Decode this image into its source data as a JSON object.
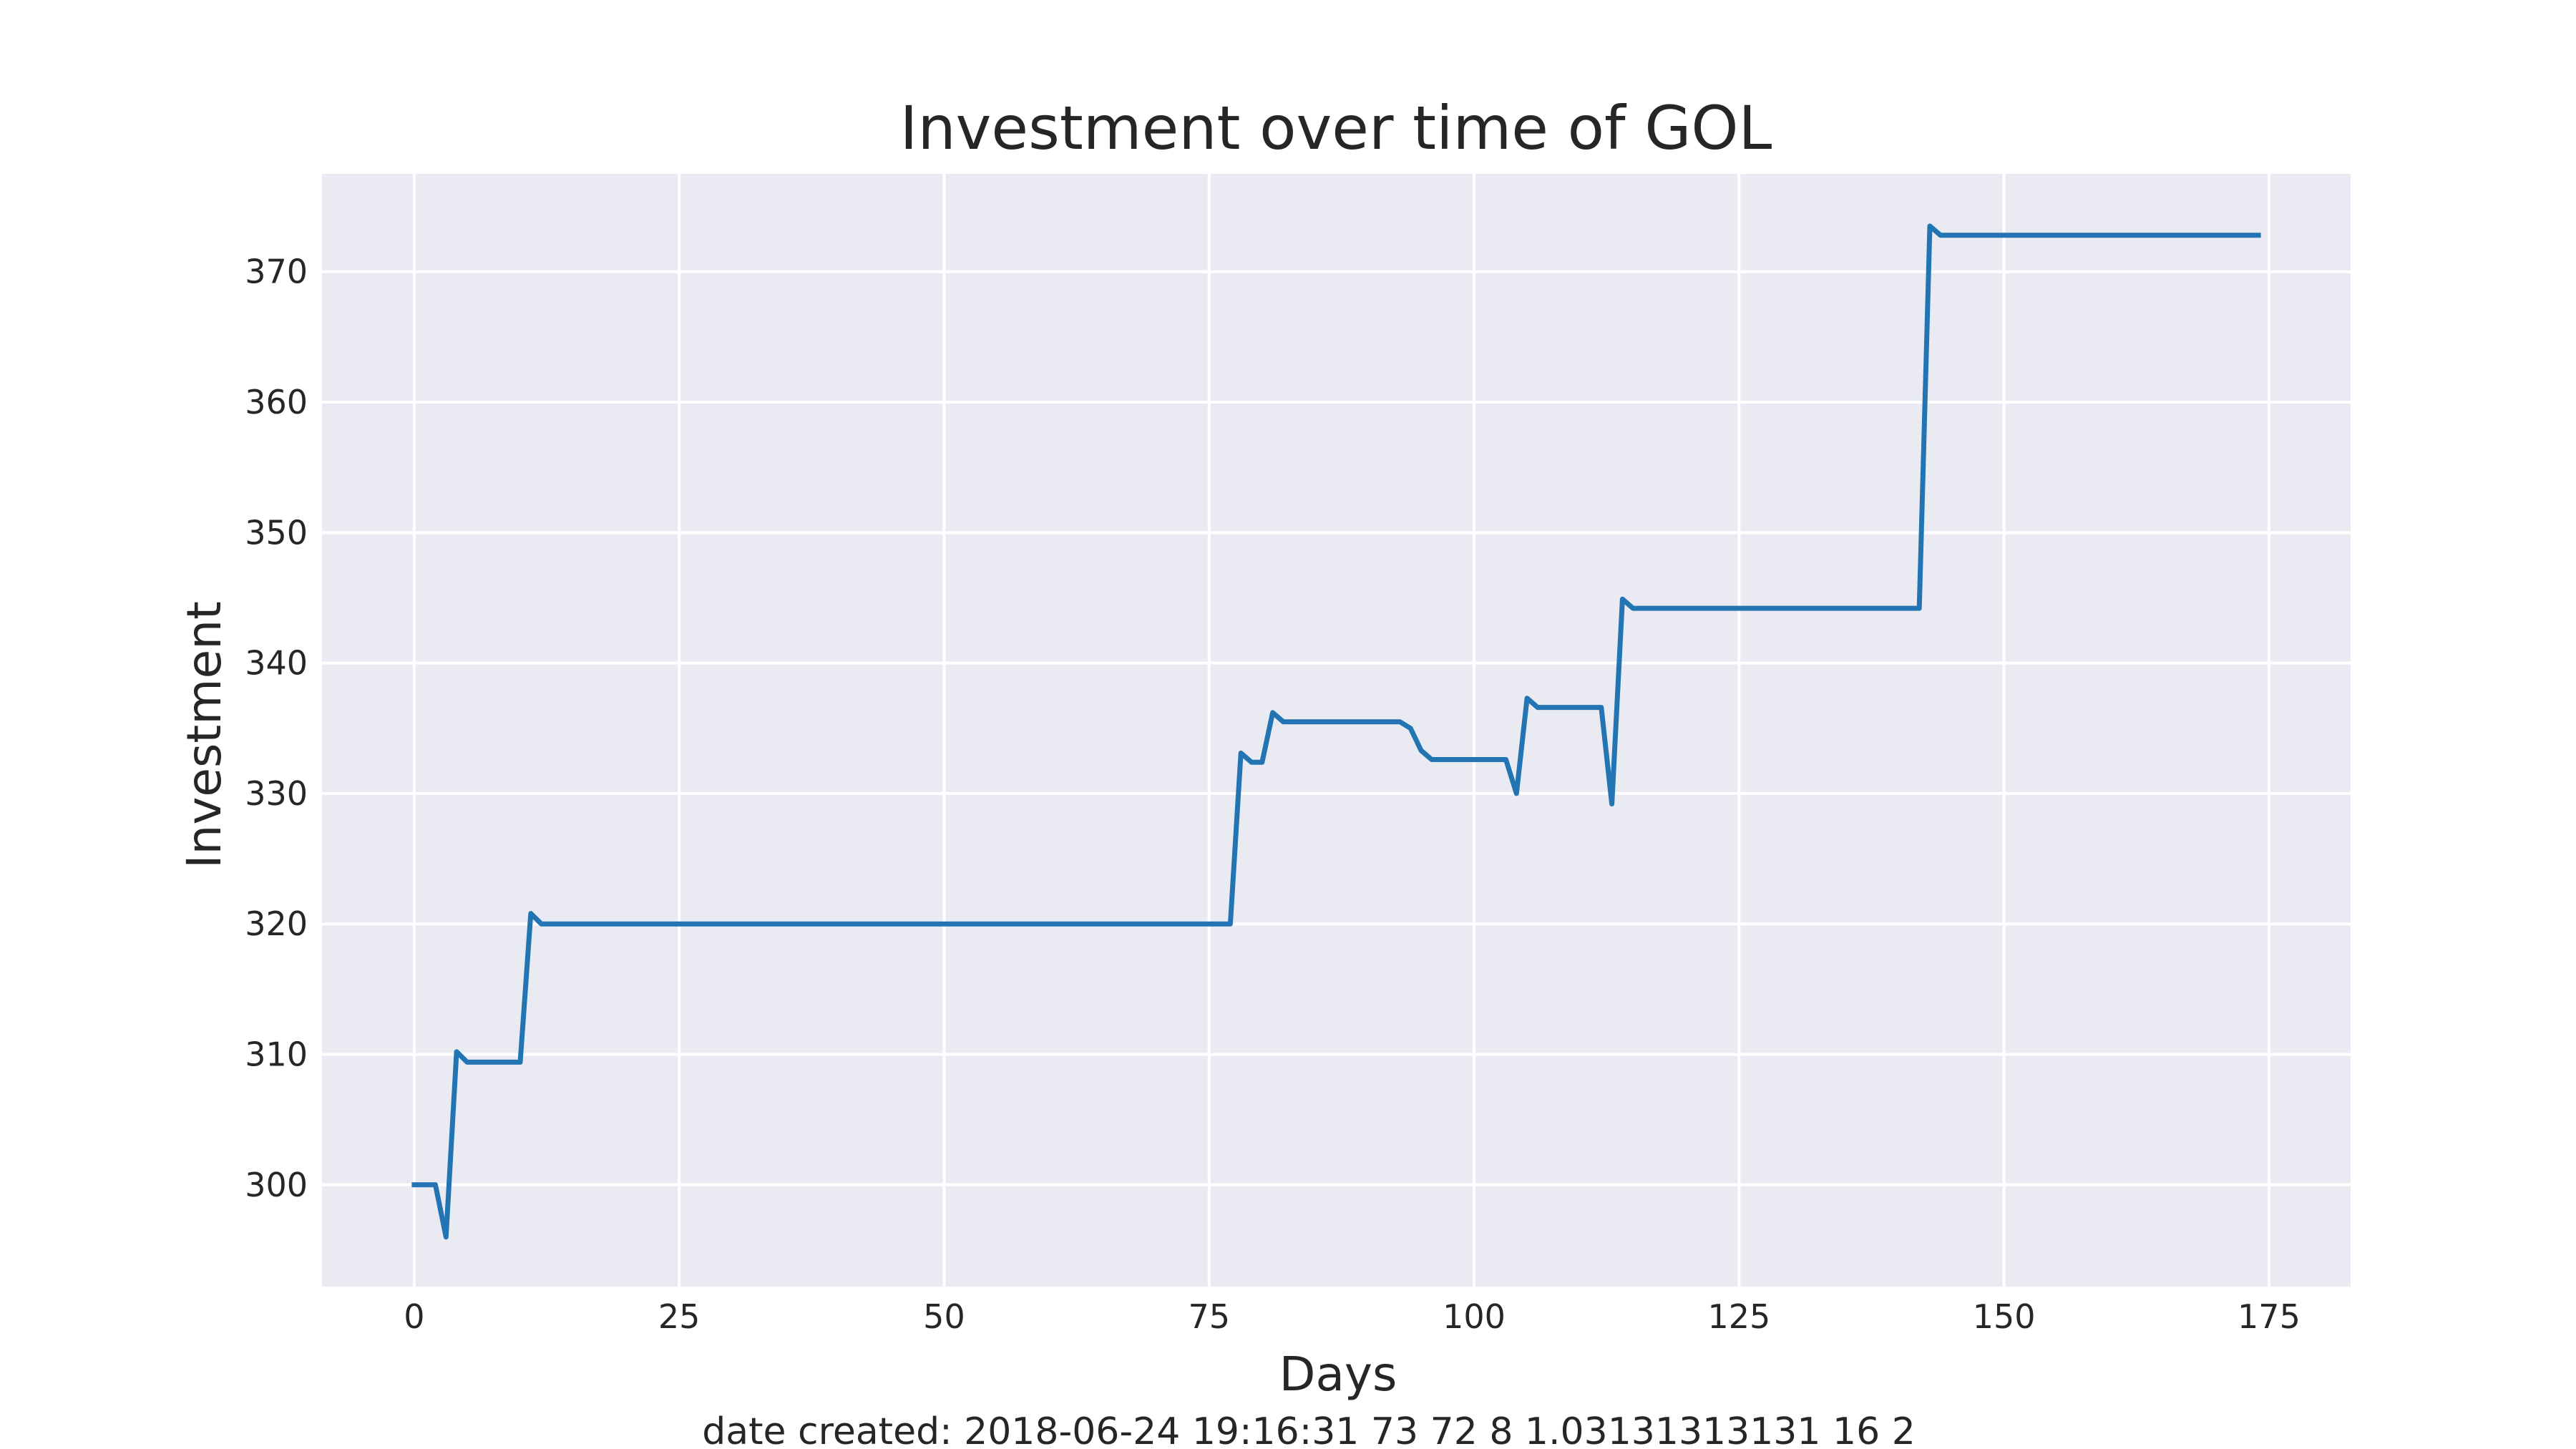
{
  "chart_data": {
    "type": "line",
    "title": "Investment over time of GOL",
    "xlabel": "Days",
    "ylabel": "Investment",
    "footer": "date created: 2018-06-24 19:16:31 73 72 8 1.03131313131 16 2",
    "xlim": [
      -8.7,
      182.7
    ],
    "ylim": [
      292.2,
      377.5
    ],
    "xticks": [
      0,
      25,
      50,
      75,
      100,
      125,
      150,
      175
    ],
    "yticks": [
      300,
      310,
      320,
      330,
      340,
      350,
      360,
      370
    ],
    "grid": true,
    "background": "#eaeaf2",
    "grid_color": "#ffffff",
    "series": [
      {
        "color": "#2274b2",
        "points": [
          [
            0,
            300
          ],
          [
            2,
            300
          ],
          [
            3,
            296
          ],
          [
            4,
            310.2
          ],
          [
            5,
            309.4
          ],
          [
            10,
            309.4
          ],
          [
            11,
            320.8
          ],
          [
            12,
            320
          ],
          [
            77,
            320
          ],
          [
            78,
            333.1
          ],
          [
            79,
            332.4
          ],
          [
            80,
            332.4
          ],
          [
            81,
            336.2
          ],
          [
            82,
            335.5
          ],
          [
            93,
            335.5
          ],
          [
            94,
            335
          ],
          [
            95,
            333.3
          ],
          [
            96,
            332.6
          ],
          [
            103,
            332.6
          ],
          [
            104,
            330
          ],
          [
            105,
            337.3
          ],
          [
            106,
            336.6
          ],
          [
            112,
            336.6
          ],
          [
            113,
            329.2
          ],
          [
            114,
            344.9
          ],
          [
            115,
            344.2
          ],
          [
            142,
            344.2
          ],
          [
            143,
            373.5
          ],
          [
            144,
            372.8
          ],
          [
            174,
            372.8
          ]
        ]
      }
    ]
  }
}
